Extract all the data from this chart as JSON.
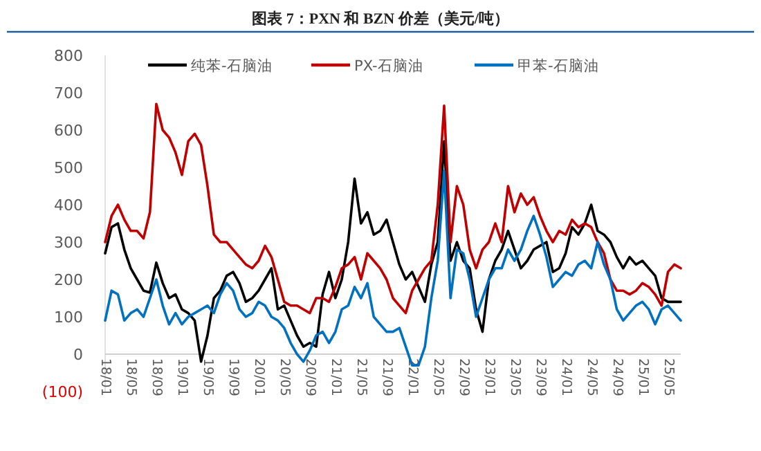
{
  "chart_data": {
    "type": "line",
    "title": "图表 7：PXN 和 BZN 价差（美元/吨）",
    "legend": "top",
    "line_style": "solid",
    "marker": "none",
    "grid": false,
    "categories": [
      "18/01",
      null,
      null,
      null,
      "18/05",
      null,
      null,
      null,
      "18/09",
      null,
      null,
      null,
      "19/01",
      null,
      null,
      null,
      "19/05",
      null,
      null,
      null,
      "19/09",
      null,
      null,
      null,
      "20/01",
      null,
      null,
      null,
      "20/05",
      null,
      null,
      null,
      "20/09",
      null,
      null,
      null,
      "21/01",
      null,
      null,
      null,
      "21/05",
      null,
      null,
      null,
      "21/09",
      null,
      null,
      null,
      "22/01",
      null,
      null,
      null,
      "22/05",
      null,
      null,
      null,
      "22/09",
      null,
      null,
      null,
      "23/01",
      null,
      null,
      null,
      "23/05",
      null,
      null,
      null,
      "23/09",
      null,
      null,
      null,
      "24/01",
      null,
      null,
      null,
      "24/05",
      null,
      null,
      null,
      "24/09",
      null,
      null,
      null,
      "25/01",
      null,
      null,
      null,
      "25/05",
      null,
      null
    ],
    "ylim": [
      -100,
      800
    ],
    "yticks": [
      {
        "value": -100,
        "label": "(100)"
      },
      0,
      100,
      200,
      300,
      400,
      500,
      600,
      700,
      800
    ],
    "series": [
      {
        "name": "纯苯-石脑油",
        "color": "#000000",
        "values": [
          270,
          340,
          350,
          280,
          230,
          200,
          170,
          165,
          245,
          190,
          150,
          160,
          120,
          110,
          90,
          -20,
          50,
          150,
          170,
          210,
          220,
          190,
          140,
          150,
          170,
          200,
          230,
          120,
          130,
          90,
          50,
          20,
          30,
          20,
          160,
          220,
          150,
          200,
          300,
          470,
          350,
          380,
          320,
          330,
          360,
          300,
          240,
          200,
          220,
          180,
          140,
          240,
          300,
          570,
          250,
          300,
          250,
          230,
          120,
          60,
          200,
          250,
          280,
          330,
          280,
          230,
          250,
          280,
          290,
          300,
          220,
          230,
          270,
          340,
          320,
          350,
          400,
          330,
          320,
          300,
          260,
          230,
          260,
          240,
          250,
          230,
          210,
          150,
          140,
          140,
          140
        ]
      },
      {
        "name": "PX-石脑油",
        "color": "#c00000",
        "values": [
          300,
          370,
          400,
          360,
          330,
          330,
          310,
          380,
          670,
          600,
          580,
          540,
          480,
          570,
          590,
          560,
          450,
          320,
          300,
          300,
          280,
          260,
          240,
          230,
          250,
          290,
          260,
          200,
          140,
          130,
          130,
          120,
          110,
          150,
          150,
          140,
          180,
          230,
          240,
          260,
          200,
          270,
          250,
          230,
          200,
          150,
          130,
          110,
          170,
          200,
          230,
          250,
          400,
          665,
          300,
          450,
          400,
          280,
          230,
          280,
          300,
          350,
          300,
          450,
          380,
          430,
          400,
          420,
          370,
          330,
          300,
          330,
          320,
          360,
          340,
          350,
          340,
          300,
          270,
          200,
          170,
          170,
          160,
          170,
          190,
          180,
          160,
          130,
          220,
          240,
          230
        ]
      },
      {
        "name": "甲苯-石脑油",
        "color": "#0070c0",
        "values": [
          90,
          170,
          160,
          90,
          110,
          120,
          100,
          150,
          200,
          130,
          80,
          110,
          80,
          100,
          110,
          120,
          130,
          110,
          160,
          190,
          170,
          120,
          100,
          110,
          140,
          130,
          100,
          90,
          70,
          30,
          0,
          -20,
          10,
          50,
          60,
          30,
          60,
          120,
          130,
          180,
          150,
          190,
          100,
          80,
          60,
          60,
          70,
          20,
          -30,
          -30,
          20,
          150,
          250,
          490,
          150,
          280,
          270,
          200,
          100,
          150,
          200,
          230,
          230,
          280,
          250,
          280,
          330,
          370,
          320,
          260,
          180,
          200,
          220,
          210,
          240,
          250,
          230,
          300,
          240,
          200,
          120,
          90,
          110,
          130,
          140,
          120,
          80,
          120,
          130,
          110,
          90
        ]
      }
    ]
  }
}
